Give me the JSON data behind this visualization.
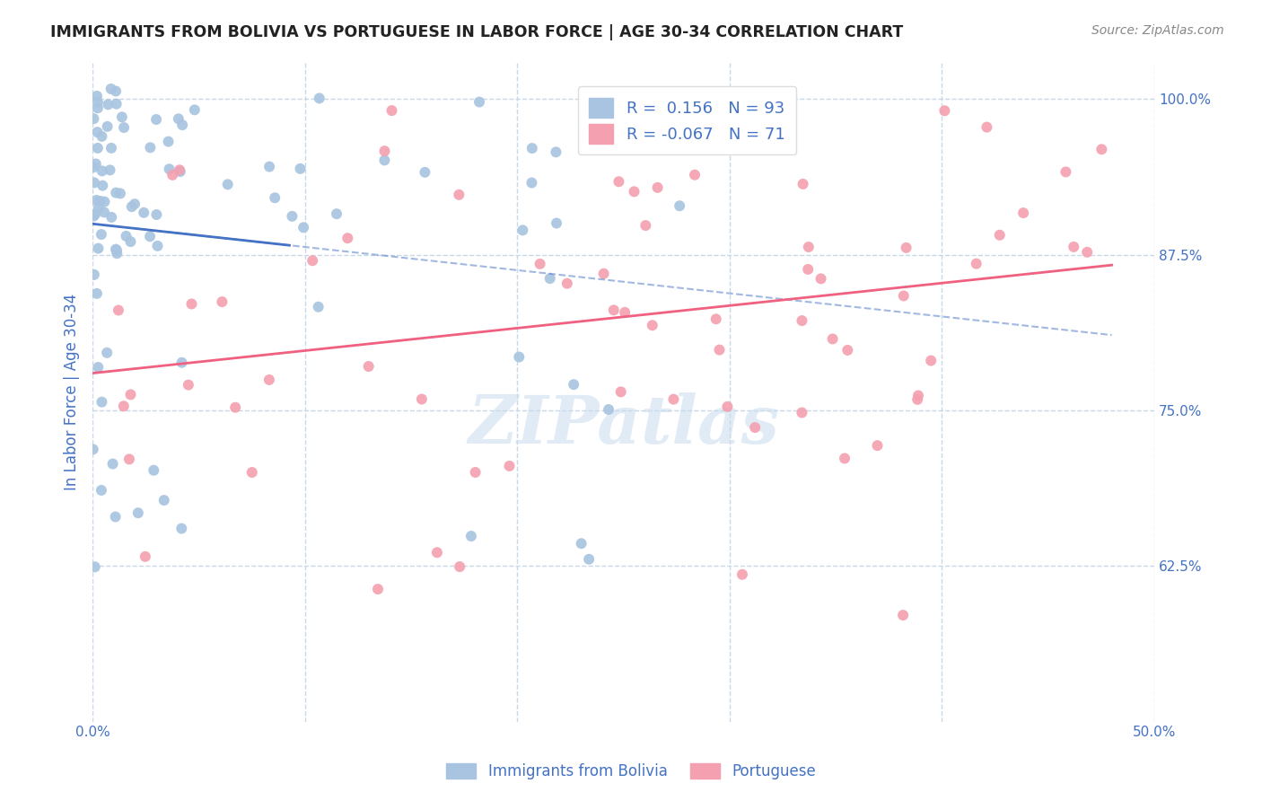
{
  "title": "IMMIGRANTS FROM BOLIVIA VS PORTUGUESE IN LABOR FORCE | AGE 30-34 CORRELATION CHART",
  "source": "Source: ZipAtlas.com",
  "ylabel": "In Labor Force | Age 30-34",
  "xlim": [
    0.0,
    0.5
  ],
  "ylim": [
    0.5,
    1.03
  ],
  "yticks": [
    0.625,
    0.75,
    0.875,
    1.0
  ],
  "ytick_labels": [
    "62.5%",
    "75.0%",
    "87.5%",
    "100.0%"
  ],
  "xtick_positions": [
    0.0,
    0.1,
    0.2,
    0.3,
    0.4,
    0.5
  ],
  "xtick_labels": [
    "0.0%",
    "",
    "",
    "",
    "",
    "50.0%"
  ],
  "bolivia_color": "#a8c4e0",
  "portuguese_color": "#f4a0b0",
  "bolivia_line_color": "#4472c4",
  "portuguese_line_color": "#f06080",
  "dashed_line_color": "#4472c4",
  "legend_text_color": "#4472c4",
  "axis_color": "#4472c4",
  "grid_color": "#c8d8e8",
  "R_bolivia": 0.156,
  "N_bolivia": 93,
  "R_portuguese": -0.067,
  "N_portuguese": 71,
  "title_color": "#222222",
  "source_color": "#888888"
}
